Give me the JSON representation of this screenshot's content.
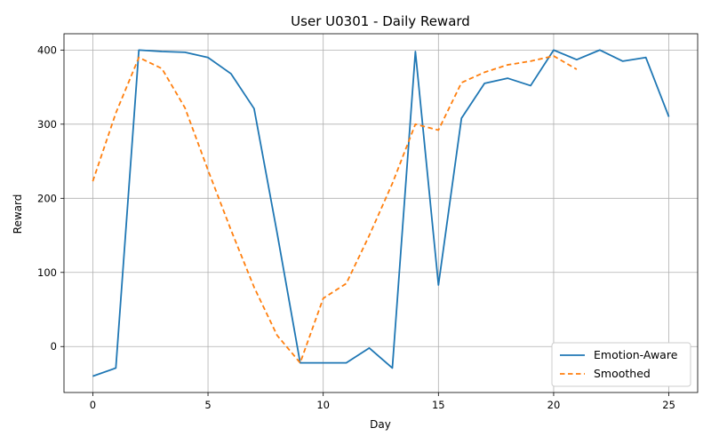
{
  "chart_data": {
    "type": "line",
    "title": "User U0301 - Daily Reward",
    "xlabel": "Day",
    "ylabel": "Reward",
    "xlim": [
      -1.25,
      26.25
    ],
    "ylim": [
      -62,
      422
    ],
    "x_ticks": [
      0,
      5,
      10,
      15,
      20,
      25
    ],
    "y_ticks": [
      0,
      100,
      200,
      300,
      400
    ],
    "grid": true,
    "legend_position": "lower-right",
    "series": [
      {
        "name": "Emotion-Aware",
        "color": "#1f77b4",
        "style": "solid",
        "x": [
          0,
          1,
          2,
          3,
          4,
          5,
          6,
          7,
          8,
          9,
          10,
          11,
          12,
          13,
          14,
          15,
          16,
          17,
          18,
          19,
          20,
          21,
          22,
          23,
          24,
          25
        ],
        "y": [
          -40,
          -29,
          400,
          398,
          397,
          390,
          368,
          321,
          153,
          -22,
          -22,
          -22,
          -2,
          -29,
          398,
          83,
          308,
          355,
          362,
          352,
          400,
          387,
          400,
          385,
          390,
          310
        ]
      },
      {
        "name": "Smoothed",
        "color": "#ff7f0e",
        "style": "dashed",
        "x": [
          0,
          1,
          2,
          3,
          4,
          5,
          6,
          7,
          8,
          9,
          10,
          11,
          12,
          13,
          14,
          15,
          16,
          17,
          18,
          19,
          20,
          21
        ],
        "y": [
          223,
          315,
          390,
          375,
          322,
          238,
          157,
          80,
          15,
          -22,
          65,
          85,
          150,
          220,
          300,
          292,
          356,
          370,
          380,
          385,
          392,
          374
        ]
      }
    ]
  }
}
